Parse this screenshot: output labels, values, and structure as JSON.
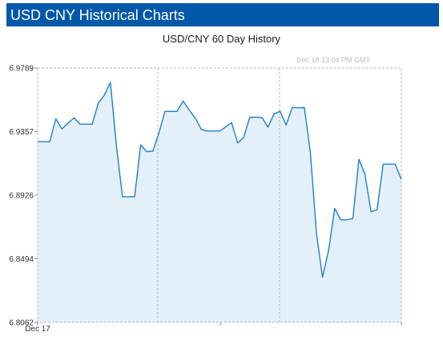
{
  "header": {
    "title": "USD CNY Historical Charts"
  },
  "stamp": "Dec 18  13:04 PM GMT",
  "colors": {
    "header_bg": "#0058a8",
    "line": "#1f7fc9",
    "fill": "#e3f0fa",
    "grid": "#b8b8b8"
  },
  "chart_data": {
    "type": "area",
    "title": "USD/CNY  60 Day History",
    "xlabel": "",
    "ylabel": "",
    "x_tick_labels": [
      "Dec 17"
    ],
    "y_ticks": [
      6.9789,
      6.9357,
      6.8926,
      6.8494,
      6.8062
    ],
    "ylim": [
      6.8062,
      6.9789
    ],
    "grid": true,
    "values": [
      6.929,
      6.929,
      6.9288,
      6.9444,
      6.9375,
      6.9415,
      6.945,
      6.9408,
      6.9408,
      6.9408,
      6.9551,
      6.9604,
      6.9691,
      6.9257,
      6.8915,
      6.8915,
      6.8916,
      6.9267,
      6.9221,
      6.9224,
      6.9346,
      6.9494,
      6.9494,
      6.9494,
      6.9565,
      6.9502,
      6.9449,
      6.9372,
      6.9361,
      6.9361,
      6.9361,
      6.9388,
      6.9418,
      6.928,
      6.9318,
      6.9455,
      6.9455,
      6.9453,
      6.9387,
      6.9478,
      6.9496,
      6.9402,
      6.9521,
      6.9519,
      6.952,
      6.9212,
      6.8664,
      6.8369,
      6.8552,
      6.8836,
      6.8758,
      6.8758,
      6.8767,
      6.9169,
      6.9068,
      6.8813,
      6.8827,
      6.9136,
      6.9136,
      6.9136,
      6.9033
    ]
  }
}
